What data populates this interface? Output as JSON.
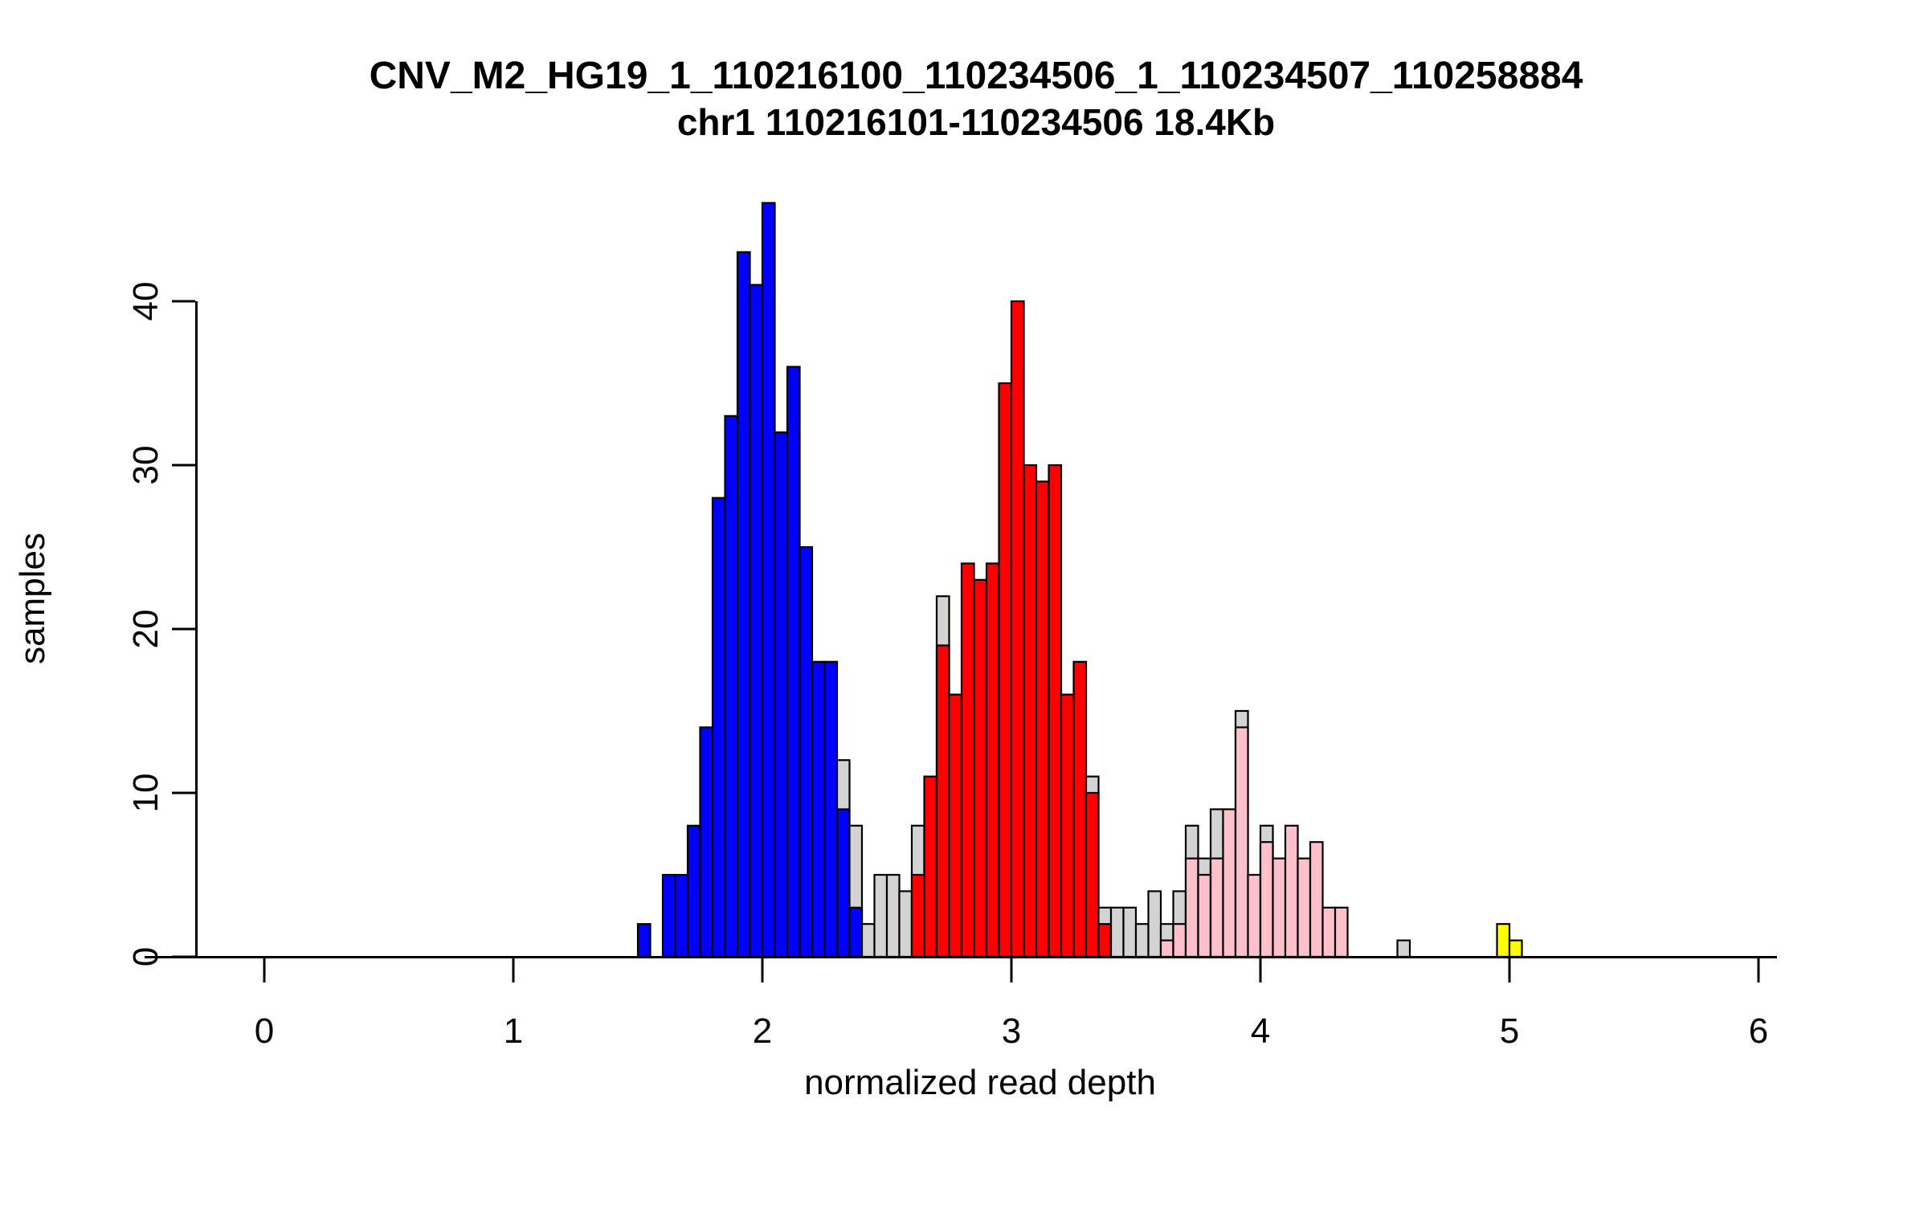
{
  "figure": {
    "title": "CNV_M2_HG19_1_110216100_110234506_1_110234507_110258884",
    "subtitle": "chr1 110216101-110234506 18.4Kb",
    "xlabel": "normalized read depth",
    "ylabel": "samples"
  },
  "colors": {
    "background": "#FFFFFF",
    "axis": "#000000",
    "bar_border": "#000000",
    "gray": "#D3D3D3",
    "blue": "#0000FF",
    "red": "#FF0000",
    "pink": "#FFC0CB",
    "yellow": "#FFFF00"
  },
  "chart_data": {
    "type": "bar",
    "title": "CNV_M2_HG19_1_110216100_110234506_1_110234507_110258884",
    "subtitle": "chr1 110216101-110234506 18.4Kb",
    "xlabel": "normalized read depth",
    "ylabel": "samples",
    "xlim": [
      0,
      6
    ],
    "ylim": [
      0,
      46
    ],
    "x_ticks": [
      0,
      1,
      2,
      3,
      4,
      5,
      6
    ],
    "y_ticks": [
      0,
      10,
      20,
      30,
      40
    ],
    "grid": false,
    "legend": "none",
    "bin_width": 0.05,
    "series_note": "each bar: bin start x, segments drawn back-to-front (gray = all samples behind colored overlay)",
    "bars": [
      {
        "x": 1.5,
        "segments": [
          {
            "color": "blue",
            "h": 2
          }
        ]
      },
      {
        "x": 1.6,
        "segments": [
          {
            "color": "blue",
            "h": 5
          }
        ]
      },
      {
        "x": 1.65,
        "segments": [
          {
            "color": "blue",
            "h": 5
          }
        ]
      },
      {
        "x": 1.7,
        "segments": [
          {
            "color": "blue",
            "h": 8
          }
        ]
      },
      {
        "x": 1.75,
        "segments": [
          {
            "color": "blue",
            "h": 14
          }
        ]
      },
      {
        "x": 1.8,
        "segments": [
          {
            "color": "blue",
            "h": 28
          }
        ]
      },
      {
        "x": 1.85,
        "segments": [
          {
            "color": "blue",
            "h": 33
          }
        ]
      },
      {
        "x": 1.9,
        "segments": [
          {
            "color": "blue",
            "h": 43
          }
        ]
      },
      {
        "x": 1.95,
        "segments": [
          {
            "color": "blue",
            "h": 41
          }
        ]
      },
      {
        "x": 2.0,
        "segments": [
          {
            "color": "blue",
            "h": 46
          }
        ]
      },
      {
        "x": 2.05,
        "segments": [
          {
            "color": "blue",
            "h": 32
          }
        ]
      },
      {
        "x": 2.1,
        "segments": [
          {
            "color": "blue",
            "h": 36
          }
        ]
      },
      {
        "x": 2.15,
        "segments": [
          {
            "color": "blue",
            "h": 25
          }
        ]
      },
      {
        "x": 2.2,
        "segments": [
          {
            "color": "blue",
            "h": 18
          }
        ]
      },
      {
        "x": 2.25,
        "segments": [
          {
            "color": "blue",
            "h": 18
          }
        ]
      },
      {
        "x": 2.3,
        "segments": [
          {
            "color": "gray",
            "h": 12
          },
          {
            "color": "blue",
            "h": 9
          }
        ]
      },
      {
        "x": 2.35,
        "segments": [
          {
            "color": "gray",
            "h": 8
          },
          {
            "color": "blue",
            "h": 3
          }
        ]
      },
      {
        "x": 2.4,
        "segments": [
          {
            "color": "gray",
            "h": 2
          }
        ]
      },
      {
        "x": 2.45,
        "segments": [
          {
            "color": "gray",
            "h": 5
          }
        ]
      },
      {
        "x": 2.5,
        "segments": [
          {
            "color": "gray",
            "h": 5
          }
        ]
      },
      {
        "x": 2.55,
        "segments": [
          {
            "color": "gray",
            "h": 4
          }
        ]
      },
      {
        "x": 2.6,
        "segments": [
          {
            "color": "gray",
            "h": 8
          },
          {
            "color": "red",
            "h": 5
          }
        ]
      },
      {
        "x": 2.65,
        "segments": [
          {
            "color": "red",
            "h": 11
          }
        ]
      },
      {
        "x": 2.7,
        "segments": [
          {
            "color": "gray",
            "h": 22
          },
          {
            "color": "red",
            "h": 19
          }
        ]
      },
      {
        "x": 2.75,
        "segments": [
          {
            "color": "red",
            "h": 16
          }
        ]
      },
      {
        "x": 2.8,
        "segments": [
          {
            "color": "red",
            "h": 24
          }
        ]
      },
      {
        "x": 2.85,
        "segments": [
          {
            "color": "red",
            "h": 23
          }
        ]
      },
      {
        "x": 2.9,
        "segments": [
          {
            "color": "red",
            "h": 24
          }
        ]
      },
      {
        "x": 2.95,
        "segments": [
          {
            "color": "red",
            "h": 35
          }
        ]
      },
      {
        "x": 3.0,
        "segments": [
          {
            "color": "red",
            "h": 40
          }
        ]
      },
      {
        "x": 3.05,
        "segments": [
          {
            "color": "red",
            "h": 30
          }
        ]
      },
      {
        "x": 3.1,
        "segments": [
          {
            "color": "red",
            "h": 29
          }
        ]
      },
      {
        "x": 3.15,
        "segments": [
          {
            "color": "red",
            "h": 30
          }
        ]
      },
      {
        "x": 3.2,
        "segments": [
          {
            "color": "red",
            "h": 16
          }
        ]
      },
      {
        "x": 3.25,
        "segments": [
          {
            "color": "red",
            "h": 18
          }
        ]
      },
      {
        "x": 3.3,
        "segments": [
          {
            "color": "gray",
            "h": 11
          },
          {
            "color": "red",
            "h": 10
          }
        ]
      },
      {
        "x": 3.35,
        "segments": [
          {
            "color": "gray",
            "h": 3
          },
          {
            "color": "red",
            "h": 2
          }
        ]
      },
      {
        "x": 3.4,
        "segments": [
          {
            "color": "gray",
            "h": 3
          }
        ]
      },
      {
        "x": 3.45,
        "segments": [
          {
            "color": "gray",
            "h": 3
          }
        ]
      },
      {
        "x": 3.5,
        "segments": [
          {
            "color": "gray",
            "h": 2
          }
        ]
      },
      {
        "x": 3.55,
        "segments": [
          {
            "color": "gray",
            "h": 4
          }
        ]
      },
      {
        "x": 3.6,
        "segments": [
          {
            "color": "gray",
            "h": 2
          },
          {
            "color": "pink",
            "h": 1
          }
        ]
      },
      {
        "x": 3.65,
        "segments": [
          {
            "color": "gray",
            "h": 4
          },
          {
            "color": "pink",
            "h": 2
          }
        ]
      },
      {
        "x": 3.7,
        "segments": [
          {
            "color": "gray",
            "h": 8
          },
          {
            "color": "pink",
            "h": 6
          }
        ]
      },
      {
        "x": 3.75,
        "segments": [
          {
            "color": "gray",
            "h": 6
          },
          {
            "color": "pink",
            "h": 5
          }
        ]
      },
      {
        "x": 3.8,
        "segments": [
          {
            "color": "gray",
            "h": 9
          },
          {
            "color": "pink",
            "h": 6
          }
        ]
      },
      {
        "x": 3.85,
        "segments": [
          {
            "color": "pink",
            "h": 9
          }
        ]
      },
      {
        "x": 3.9,
        "segments": [
          {
            "color": "gray",
            "h": 15
          },
          {
            "color": "pink",
            "h": 14
          }
        ]
      },
      {
        "x": 3.95,
        "segments": [
          {
            "color": "pink",
            "h": 5
          }
        ]
      },
      {
        "x": 4.0,
        "segments": [
          {
            "color": "gray",
            "h": 8
          },
          {
            "color": "pink",
            "h": 7
          }
        ]
      },
      {
        "x": 4.05,
        "segments": [
          {
            "color": "pink",
            "h": 6
          }
        ]
      },
      {
        "x": 4.1,
        "segments": [
          {
            "color": "pink",
            "h": 8
          }
        ]
      },
      {
        "x": 4.15,
        "segments": [
          {
            "color": "pink",
            "h": 6
          }
        ]
      },
      {
        "x": 4.2,
        "segments": [
          {
            "color": "pink",
            "h": 7
          }
        ]
      },
      {
        "x": 4.25,
        "segments": [
          {
            "color": "pink",
            "h": 3
          }
        ]
      },
      {
        "x": 4.3,
        "segments": [
          {
            "color": "pink",
            "h": 3
          }
        ]
      },
      {
        "x": 4.55,
        "segments": [
          {
            "color": "gray",
            "h": 1
          }
        ]
      },
      {
        "x": 4.95,
        "segments": [
          {
            "color": "yellow",
            "h": 2
          }
        ]
      },
      {
        "x": 5.0,
        "segments": [
          {
            "color": "yellow",
            "h": 1
          }
        ]
      }
    ]
  }
}
